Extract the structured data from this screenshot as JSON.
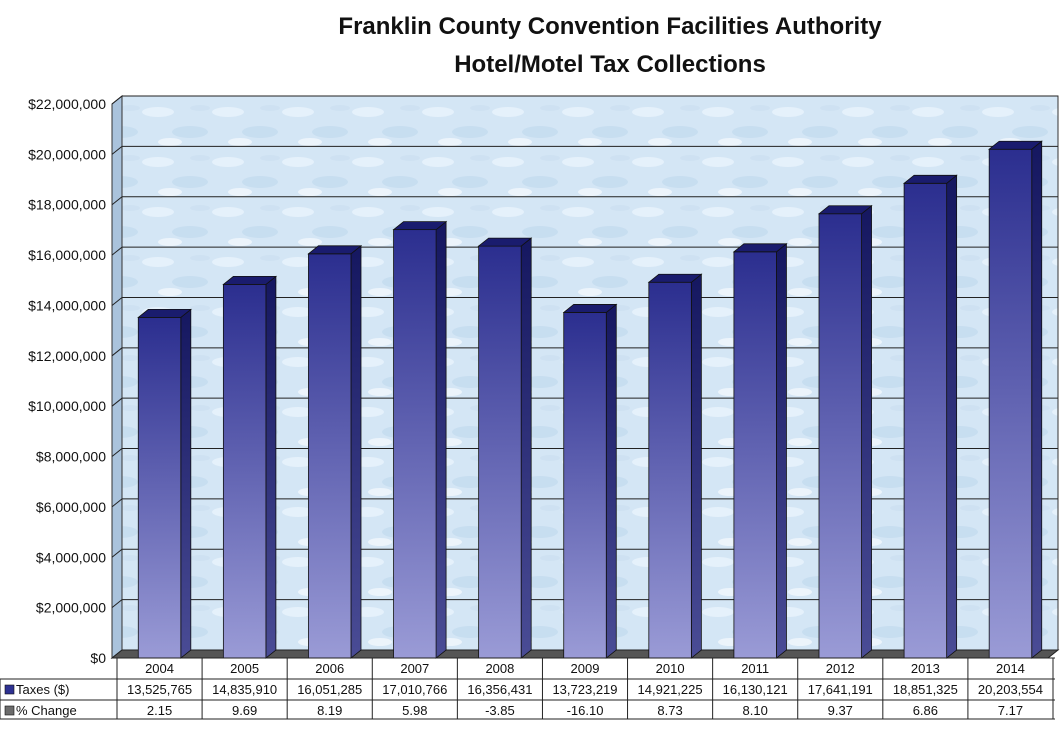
{
  "chart_data": {
    "type": "bar",
    "title": "Franklin County Convention Facilities Authority",
    "subtitle": "Hotel/Motel Tax Collections",
    "categories": [
      "2004",
      "2005",
      "2006",
      "2007",
      "2008",
      "2009",
      "2010",
      "2011",
      "2012",
      "2013",
      "2014"
    ],
    "series": [
      {
        "name": "Taxes ($)",
        "values": [
          13525765,
          14835910,
          16051285,
          17010766,
          16356431,
          13723219,
          14921225,
          16130121,
          17641191,
          18851325,
          20203554
        ],
        "labels": [
          "13,525,765",
          "14,835,910",
          "16,051,285",
          "17,010,766",
          "16,356,431",
          "13,723,219",
          "14,921,225",
          "16,130,121",
          "17,641,191",
          "18,851,325",
          "20,203,554"
        ],
        "color": "#2e3192"
      },
      {
        "name": "% Change",
        "values": [
          2.15,
          9.69,
          8.19,
          5.98,
          -3.85,
          -16.1,
          8.73,
          8.1,
          9.37,
          6.86,
          7.17
        ],
        "labels": [
          "2.15",
          "9.69",
          "8.19",
          "5.98",
          "-3.85",
          "-16.10",
          "8.73",
          "8.10",
          "9.37",
          "6.86",
          "7.17"
        ],
        "color": "#6b6b6b"
      }
    ],
    "ylim": [
      0,
      22000000
    ],
    "yticks": [
      0,
      2000000,
      4000000,
      6000000,
      8000000,
      10000000,
      12000000,
      14000000,
      16000000,
      18000000,
      20000000,
      22000000
    ],
    "ytick_labels": [
      "$0",
      "$2,000,000",
      "$4,000,000",
      "$6,000,000",
      "$8,000,000",
      "$10,000,000",
      "$12,000,000",
      "$14,000,000",
      "$16,000,000",
      "$18,000,000",
      "$20,000,000",
      "$22,000,000"
    ],
    "grid": true,
    "legend": "data table below chart"
  }
}
